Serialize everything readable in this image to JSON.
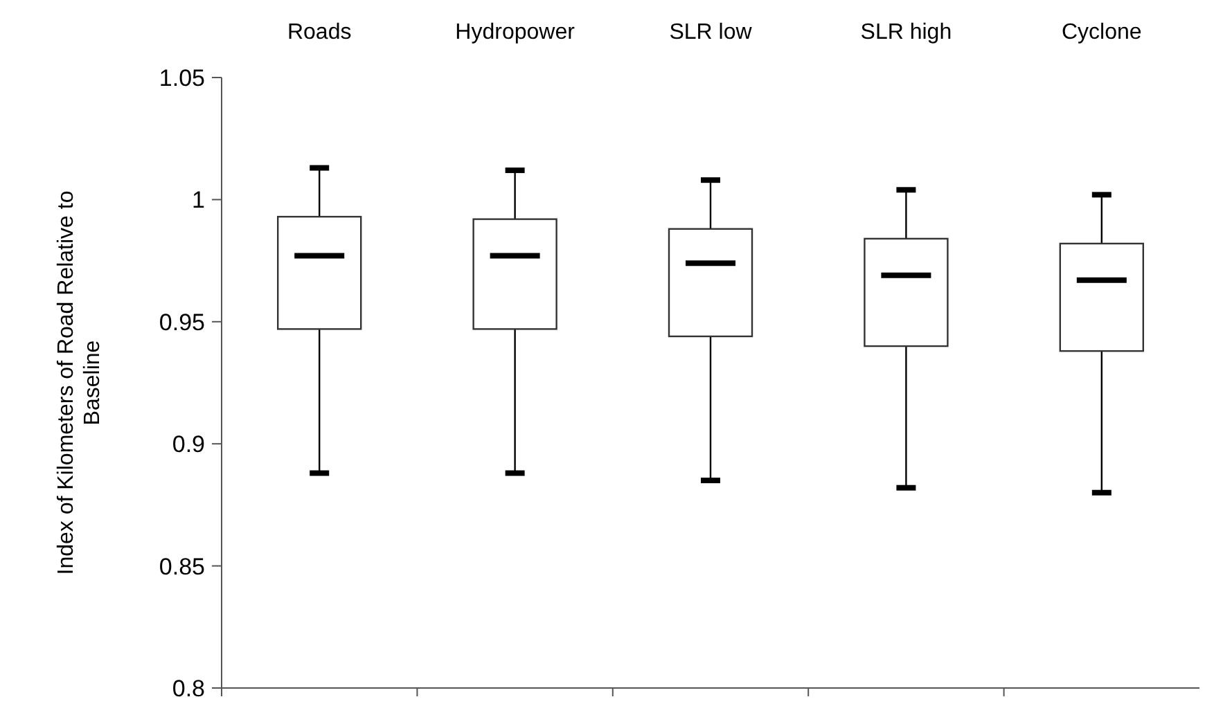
{
  "chart_data": {
    "type": "box",
    "categories": [
      "Roads",
      "Hydropower",
      "SLR low",
      "SLR high",
      "Cyclone"
    ],
    "ylabel": "Index of Kilometers of Road Relative to Baseline",
    "ylim": [
      0.8,
      1.05
    ],
    "yticks": [
      0.8,
      0.85,
      0.9,
      0.95,
      1,
      1.05
    ],
    "grid": false,
    "boxes": [
      {
        "low": 0.888,
        "q1": 0.947,
        "median": 0.977,
        "q3": 0.993,
        "high": 1.013
      },
      {
        "low": 0.888,
        "q1": 0.947,
        "median": 0.977,
        "q3": 0.992,
        "high": 1.012
      },
      {
        "low": 0.885,
        "q1": 0.944,
        "median": 0.974,
        "q3": 0.988,
        "high": 1.008
      },
      {
        "low": 0.882,
        "q1": 0.94,
        "median": 0.969,
        "q3": 0.984,
        "high": 1.004
      },
      {
        "low": 0.88,
        "q1": 0.938,
        "median": 0.967,
        "q3": 0.982,
        "high": 1.002
      }
    ]
  }
}
